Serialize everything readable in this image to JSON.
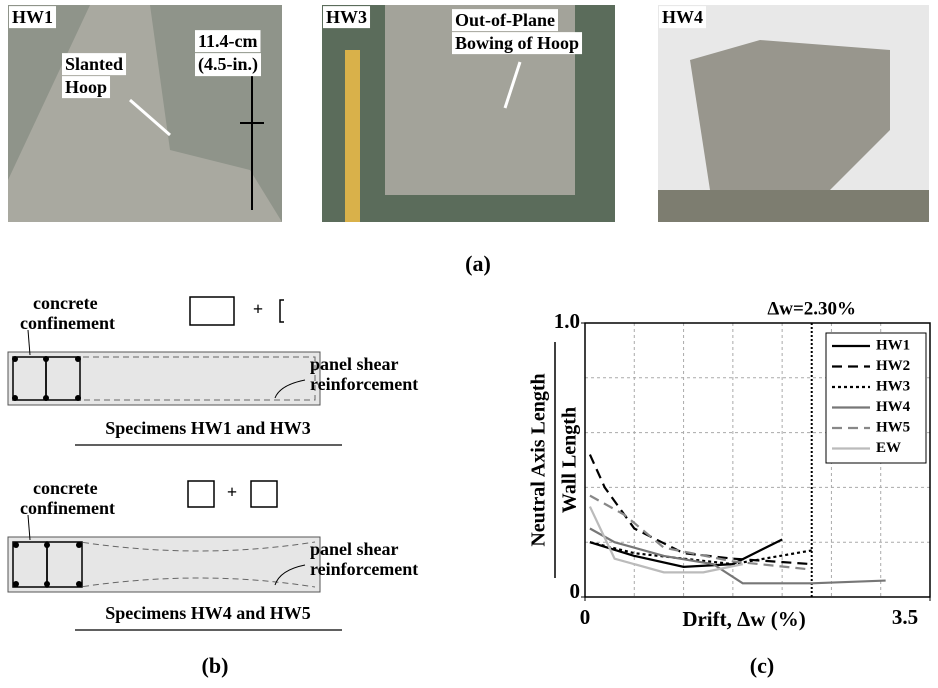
{
  "panel_labels": [
    "(a)",
    "(b)",
    "(c)"
  ],
  "photos": [
    {
      "label": "HW1",
      "notes": [
        "Slanted",
        "Hoop",
        "11.4-cm",
        "(4.5-in.)"
      ]
    },
    {
      "label": "HW3",
      "notes": [
        "Out-of-Plane",
        "Bowing of Hoop"
      ]
    },
    {
      "label": "HW4"
    }
  ],
  "diagrams": [
    {
      "confinement": [
        "concrete",
        "confinement"
      ],
      "plus": "+",
      "reinforcement": [
        "panel shear",
        "reinforcement"
      ],
      "caption": "Specimens HW1 and HW3"
    },
    {
      "confinement": [
        "concrete",
        "confinement"
      ],
      "plus": "+",
      "reinforcement": [
        "panel shear",
        "reinforcement"
      ],
      "caption": "Specimens HW4 and HW5"
    }
  ],
  "chart_data": {
    "type": "line",
    "x_label": "Drift, Δw (%)",
    "y_label": [
      "Neutral Axis Length",
      "Wall Length"
    ],
    "annotation": {
      "text": "Δw=2.30%",
      "x": 2.3
    },
    "xlim": [
      0,
      3.5
    ],
    "xticks": [
      0,
      3.5
    ],
    "xgrid": [
      0.5,
      1,
      1.5,
      2,
      2.5,
      3
    ],
    "ylim": [
      0,
      1
    ],
    "yticks": [
      0,
      {
        "value": 1,
        "label": "1.0"
      }
    ],
    "ygrid": [
      0.2,
      0.4,
      0.6,
      0.8
    ],
    "legend": "top-right",
    "series": [
      {
        "name": "HW1",
        "color": "#000000",
        "dash": "solid",
        "x": [
          0.05,
          0.5,
          1.0,
          1.5,
          2.0
        ],
        "values": [
          0.2,
          0.15,
          0.11,
          0.12,
          0.21
        ]
      },
      {
        "name": "HW2",
        "color": "#000000",
        "dash": "dashed",
        "x": [
          0.05,
          0.2,
          0.5,
          1.0,
          1.5,
          2.3
        ],
        "values": [
          0.52,
          0.4,
          0.25,
          0.16,
          0.14,
          0.12
        ]
      },
      {
        "name": "HW3",
        "color": "#000000",
        "dash": "dotted",
        "x": [
          0.05,
          0.5,
          1.0,
          1.5,
          2.3
        ],
        "values": [
          0.2,
          0.16,
          0.14,
          0.12,
          0.17
        ]
      },
      {
        "name": "HW4",
        "color": "#777777",
        "dash": "solid",
        "x": [
          0.05,
          0.3,
          0.8,
          1.3,
          1.6,
          2.3,
          3.05
        ],
        "values": [
          0.25,
          0.2,
          0.15,
          0.12,
          0.05,
          0.05,
          0.06
        ]
      },
      {
        "name": "HW5",
        "color": "#888888",
        "dash": "dashed",
        "x": [
          0.05,
          0.4,
          0.8,
          1.5,
          2.3
        ],
        "values": [
          0.37,
          0.3,
          0.18,
          0.13,
          0.1
        ]
      },
      {
        "name": "EW",
        "color": "#bbbbbb",
        "dash": "solid",
        "x": [
          0.05,
          0.3,
          0.8,
          1.2,
          1.6
        ],
        "values": [
          0.33,
          0.14,
          0.09,
          0.09,
          0.12
        ]
      }
    ]
  }
}
